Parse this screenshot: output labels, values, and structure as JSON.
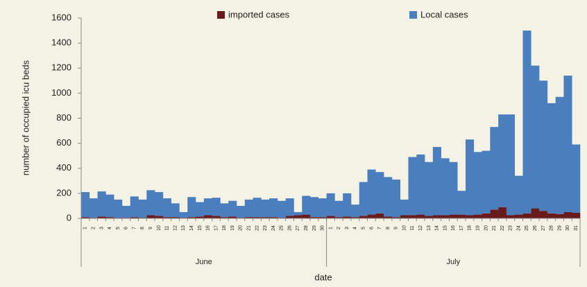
{
  "chart_data": {
    "type": "stacked-bar",
    "ylabel": "number of occupied icu beds",
    "xlabel": "date",
    "categories": [
      "1",
      "2",
      "3",
      "4",
      "5",
      "6",
      "7",
      "8",
      "9",
      "10",
      "11",
      "12",
      "13",
      "14",
      "15",
      "16",
      "17",
      "18",
      "19",
      "20",
      "21",
      "22",
      "23",
      "24",
      "25",
      "26",
      "27",
      "28",
      "29",
      "30",
      "1",
      "2",
      "3",
      "4",
      "5",
      "6",
      "7",
      "8",
      "9",
      "10",
      "11",
      "12",
      "13",
      "14",
      "15",
      "16",
      "17",
      "18",
      "19",
      "20",
      "21",
      "22",
      "23",
      "24",
      "25",
      "26",
      "27",
      "28",
      "29",
      "30",
      "31"
    ],
    "month_labels": [
      "June",
      "July"
    ],
    "series": [
      {
        "name": "imported cases",
        "color": "#6b1a1c",
        "values": [
          10,
          5,
          15,
          10,
          5,
          5,
          10,
          5,
          25,
          20,
          10,
          10,
          5,
          10,
          15,
          25,
          20,
          10,
          15,
          5,
          10,
          10,
          10,
          10,
          5,
          20,
          25,
          30,
          10,
          10,
          20,
          10,
          15,
          10,
          20,
          30,
          40,
          15,
          10,
          25,
          25,
          30,
          20,
          25,
          25,
          30,
          30,
          25,
          30,
          40,
          70,
          90,
          25,
          30,
          40,
          80,
          60,
          40,
          35,
          50,
          45
        ]
      },
      {
        "name": "Local cases",
        "color": "#4a7ebf",
        "values": [
          200,
          155,
          200,
          180,
          145,
          95,
          165,
          145,
          200,
          190,
          150,
          110,
          45,
          160,
          115,
          135,
          145,
          110,
          125,
          95,
          140,
          155,
          140,
          150,
          135,
          140,
          25,
          150,
          160,
          150,
          180,
          130,
          185,
          100,
          270,
          360,
          330,
          315,
          300,
          125,
          465,
          480,
          430,
          545,
          455,
          420,
          190,
          605,
          500,
          500,
          660,
          740,
          805,
          310,
          1460,
          1140,
          1040,
          880,
          935,
          1090,
          545
        ]
      }
    ],
    "ylim": [
      0,
      1600
    ],
    "yticks": [
      0,
      200,
      400,
      600,
      800,
      1000,
      1200,
      1400,
      1600
    ],
    "grid": false
  }
}
